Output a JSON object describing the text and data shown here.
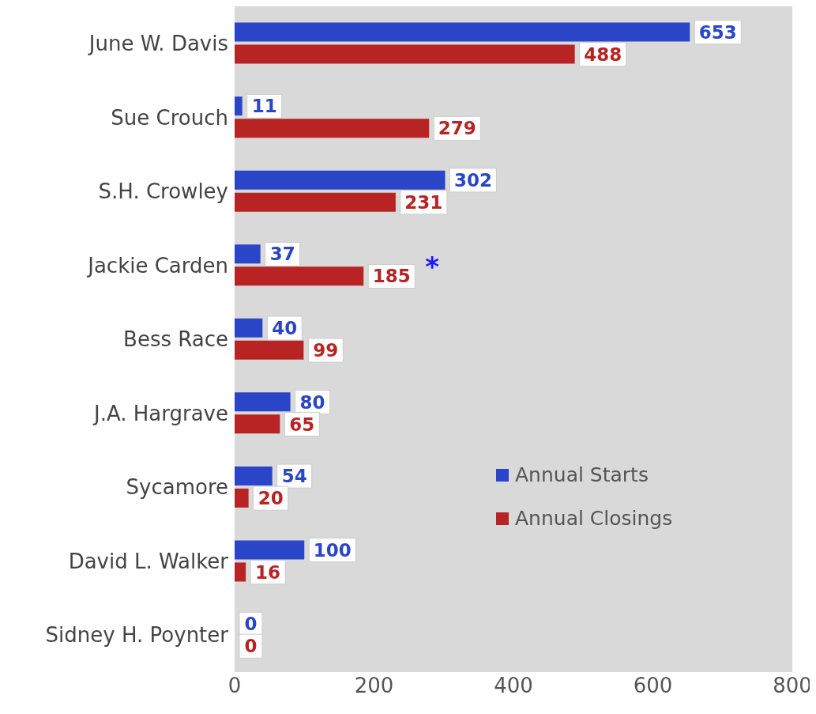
{
  "chart_data": {
    "type": "bar",
    "orientation": "horizontal",
    "categories": [
      "June W. Davis",
      "Sue Crouch",
      "S.H. Crowley",
      "Jackie Carden",
      "Bess Race",
      "J.A. Hargrave",
      "Sycamore",
      "David L. Walker",
      "Sidney H. Poynter"
    ],
    "series": [
      {
        "name": "Annual Starts",
        "color": "#2b45c8",
        "values": [
          653,
          11,
          302,
          37,
          40,
          80,
          54,
          100,
          0
        ]
      },
      {
        "name": "Annual Closings",
        "color": "#b82323",
        "values": [
          488,
          279,
          231,
          185,
          99,
          65,
          20,
          16,
          0
        ]
      }
    ],
    "xlim": [
      0,
      800
    ],
    "xticks": [
      0,
      200,
      400,
      600,
      800
    ],
    "data_labels": true,
    "grid": false,
    "legend": "right",
    "annotations": [
      {
        "text": "*",
        "x": 185,
        "y": "Jackie Carden"
      }
    ]
  }
}
